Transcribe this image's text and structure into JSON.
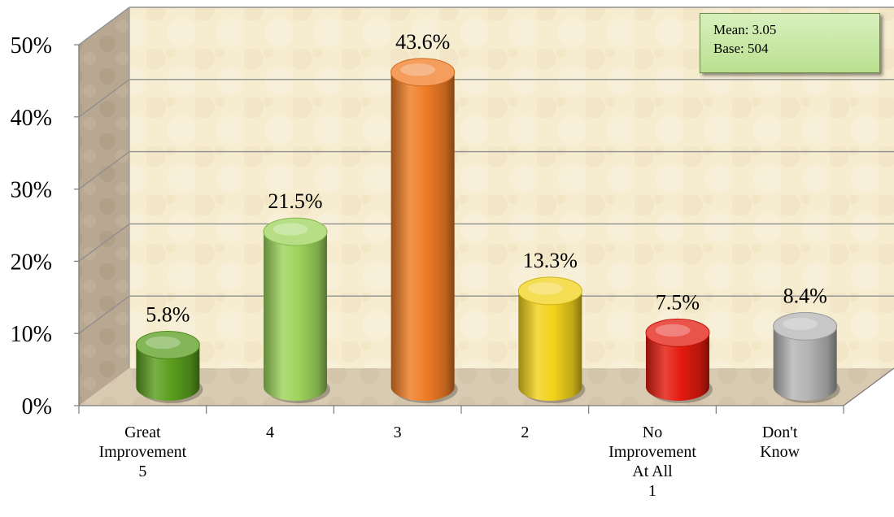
{
  "chart_data": {
    "type": "bar",
    "categories": [
      "Great Improvement 5",
      "4",
      "3",
      "2",
      "No Improvement At All 1",
      "Don't Know"
    ],
    "category_lines": [
      [
        "Great",
        "Improvement",
        "5"
      ],
      [
        "4"
      ],
      [
        "3"
      ],
      [
        "2"
      ],
      [
        "No",
        "Improvement",
        "At All",
        "1"
      ],
      [
        "Don't",
        "Know"
      ]
    ],
    "values": [
      5.8,
      21.5,
      43.6,
      13.3,
      7.5,
      8.4
    ],
    "value_labels": [
      "5.8%",
      "21.5%",
      "43.6%",
      "13.3%",
      "7.5%",
      "8.4%"
    ],
    "colors": [
      "#5a9e1e",
      "#9dd45c",
      "#f07c25",
      "#f2d21b",
      "#e41b0f",
      "#b4b4b4"
    ],
    "yticks": [
      "0%",
      "10%",
      "20%",
      "30%",
      "40%",
      "50%"
    ],
    "ylim": [
      0,
      50
    ],
    "grid": true,
    "bar_shape": "cylinder",
    "title": "",
    "xlabel": "",
    "ylabel": ""
  },
  "stats": {
    "mean": "Mean: 3.05",
    "base": "Base: 504"
  }
}
